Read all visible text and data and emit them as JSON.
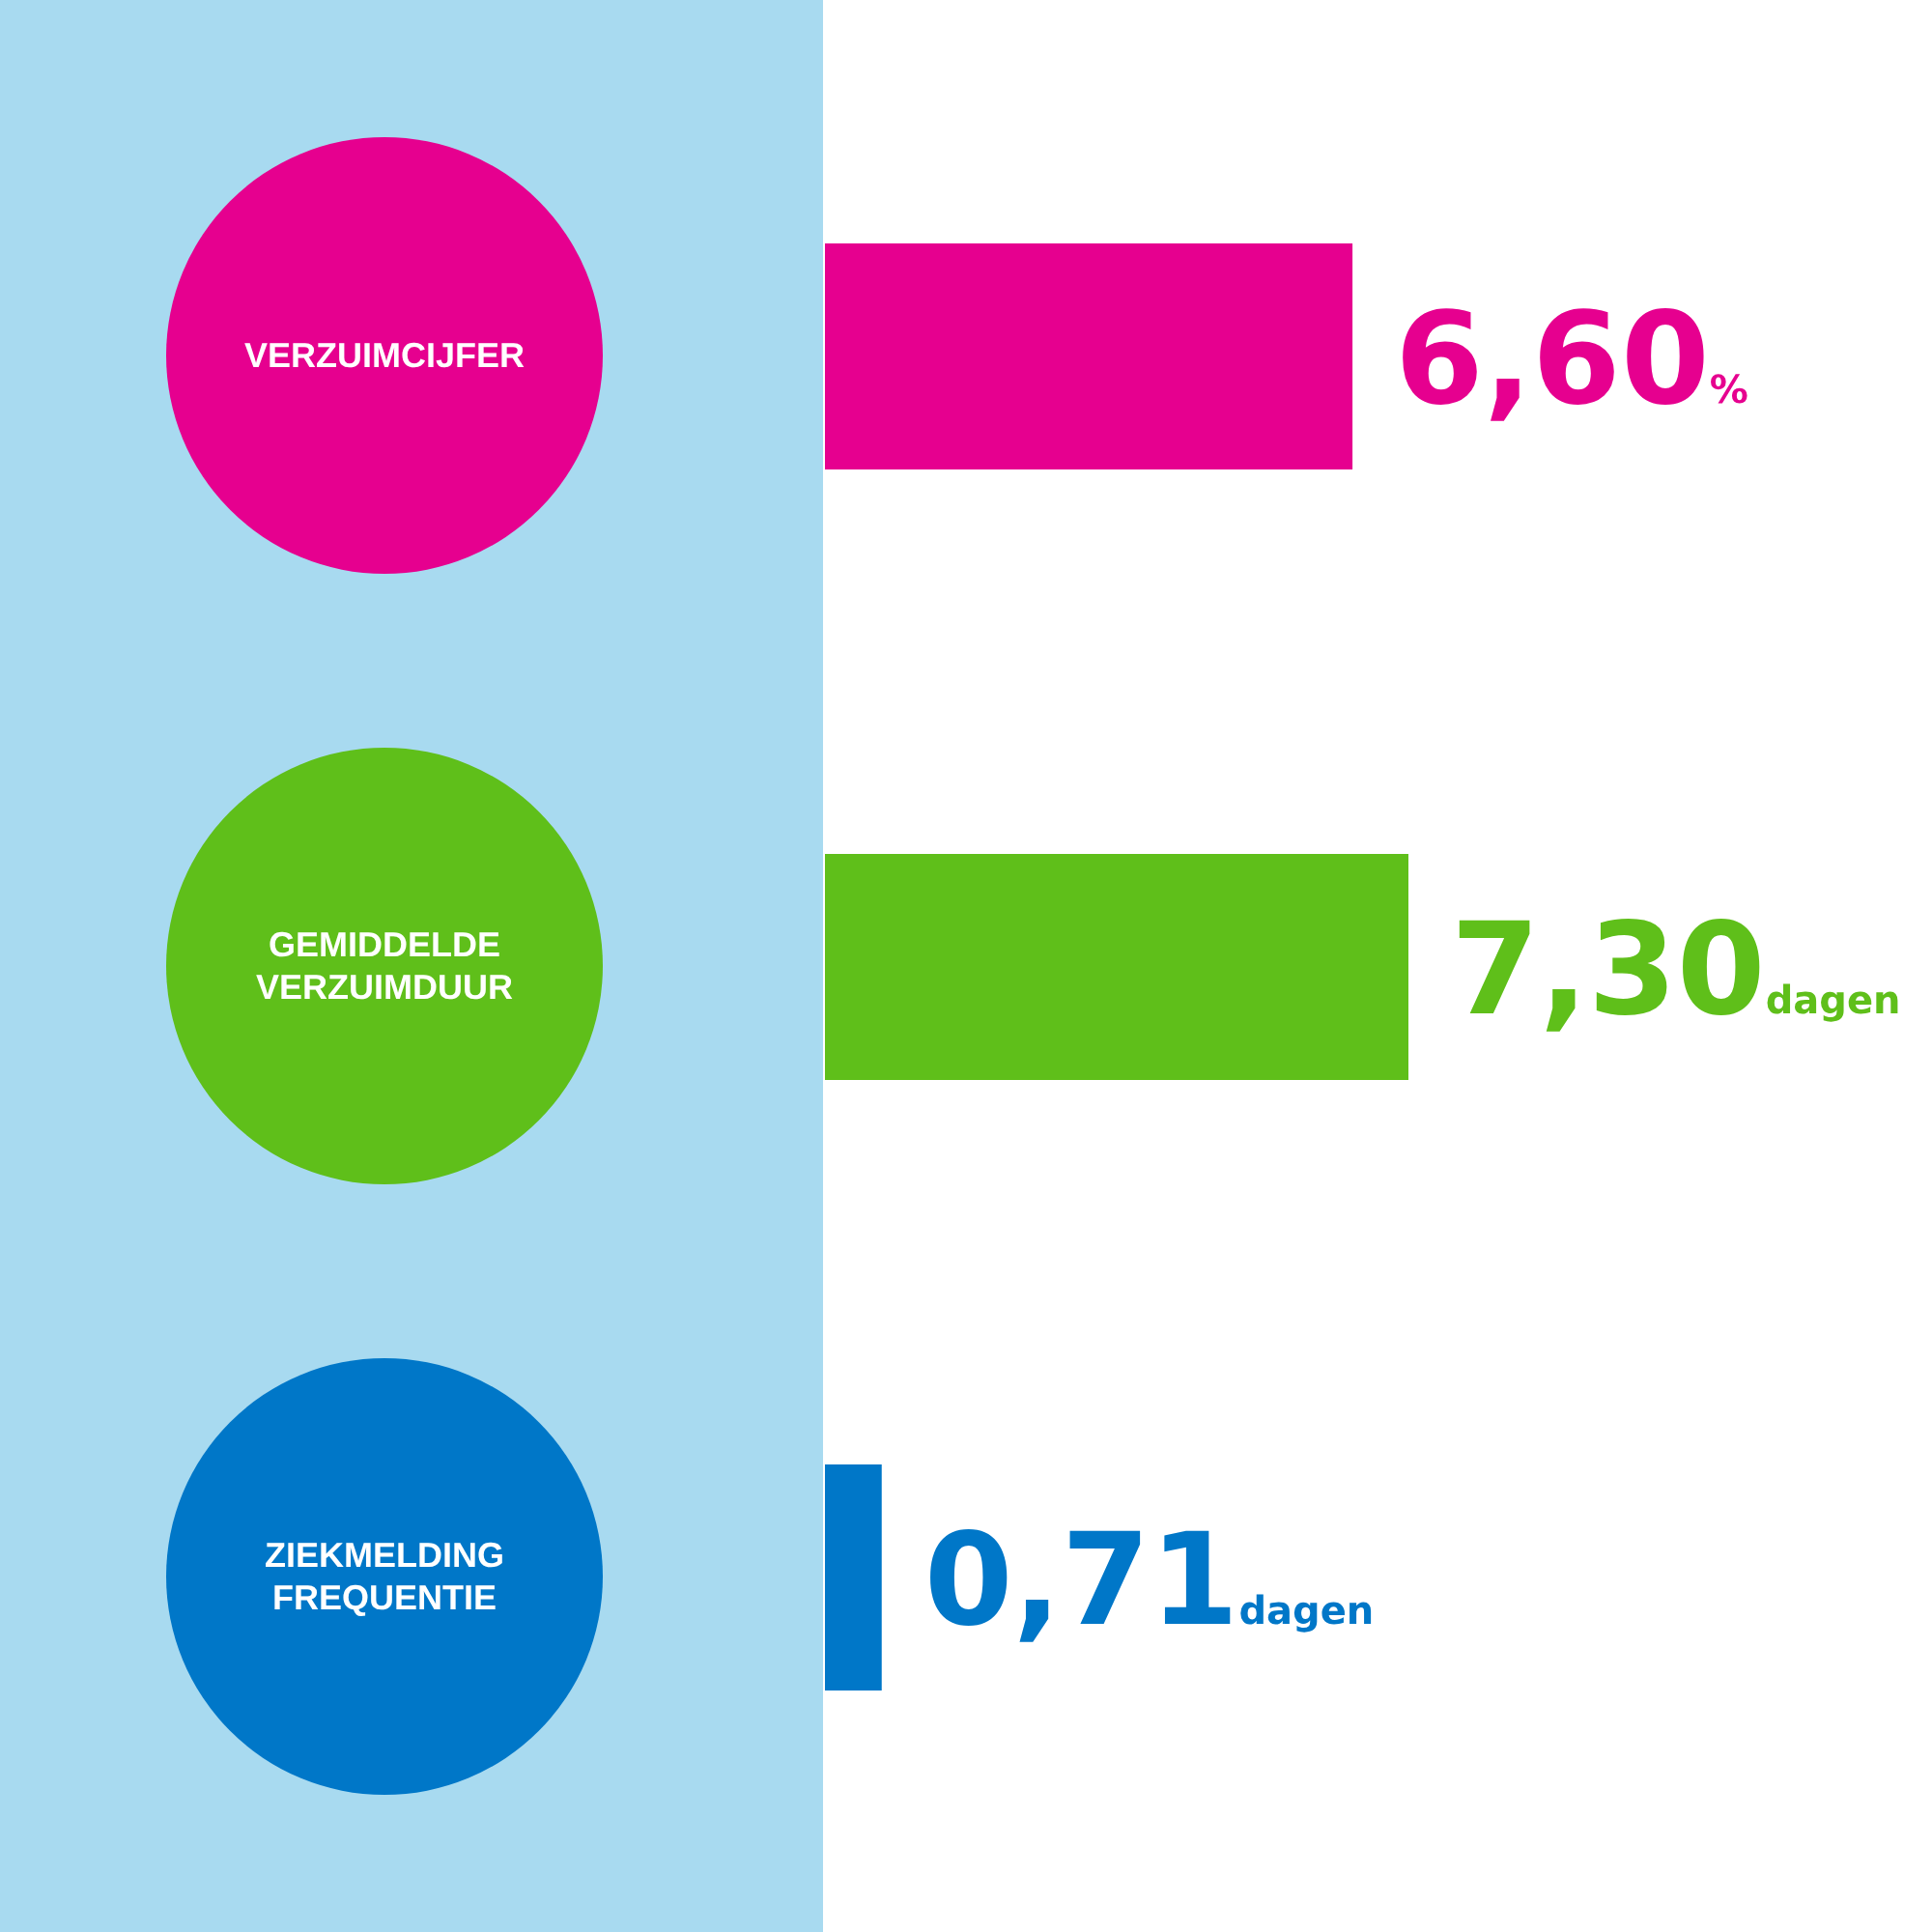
{
  "chart_data": {
    "type": "bar",
    "orientation": "horizontal",
    "categories": [
      "VERZUIMCIJFER",
      "GEMIDDELDE VERZUIMDUUR",
      "ZIEKMELDING FREQUENTIE"
    ],
    "values": [
      6.6,
      7.3,
      0.71
    ],
    "colors": [
      "#e6008f",
      "#5fbf1a",
      "#0077c8"
    ],
    "value_labels": [
      "6,60%",
      "7,30dagen",
      "0,71dagen"
    ]
  }
}
